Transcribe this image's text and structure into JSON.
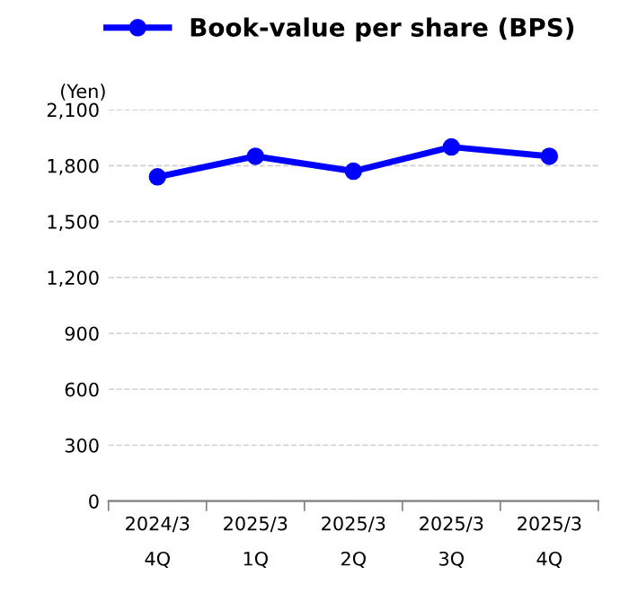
{
  "chart_data": {
    "type": "line",
    "ylabel": "(Yen)",
    "categories": [
      "2024/3\n4Q",
      "2025/3\n1Q",
      "2025/3\n2Q",
      "2025/3\n3Q",
      "2025/3\n4Q"
    ],
    "series": [
      {
        "name": "Book-value per share (BPS)",
        "color": "#0000ff",
        "values": [
          1740,
          1850,
          1770,
          1900,
          1850
        ]
      }
    ],
    "ylim": [
      0,
      2100
    ],
    "yticks": [
      0,
      300,
      600,
      900,
      {
        "value": 1200,
        "label": "1,200"
      },
      {
        "value": 1500,
        "label": "1,500"
      },
      {
        "value": 1800,
        "label": "1,800"
      },
      {
        "value": 2100,
        "label": "2,100"
      }
    ],
    "grid": "y",
    "legend": "top",
    "marker": "circle",
    "line_style": "solid"
  }
}
